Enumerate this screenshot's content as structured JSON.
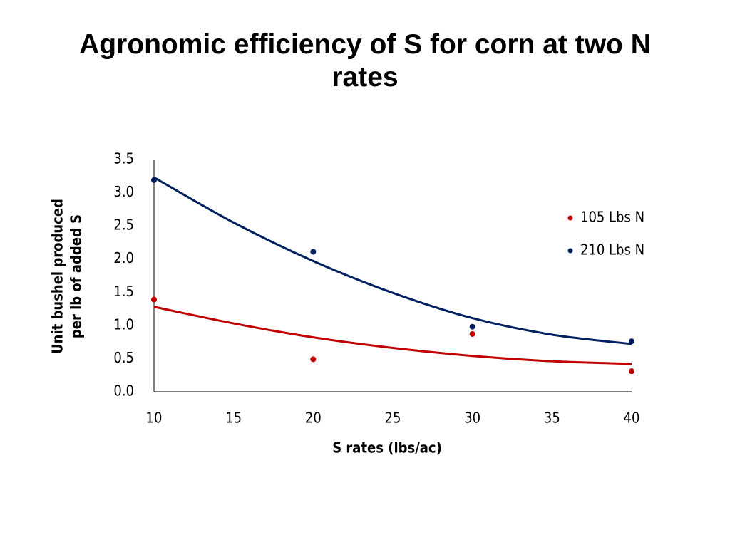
{
  "chart_data": {
    "type": "scatter",
    "title": "Agronomic efficiency of S for corn at two N rates",
    "xlabel": "S rates (lbs/ac)",
    "ylabel": [
      "Unit bushel produced",
      "per lb of added S"
    ],
    "x": [
      10,
      20,
      30,
      40
    ],
    "series": [
      {
        "name": "105 Lbs N",
        "color": "#c00000",
        "values": [
          1.39,
          0.49,
          0.87,
          0.31
        ],
        "trend": {
          "x": [
            10,
            15,
            20,
            25,
            30,
            35,
            40
          ],
          "values": [
            1.28,
            1.03,
            0.82,
            0.66,
            0.54,
            0.46,
            0.42
          ]
        }
      },
      {
        "name": "210 Lbs N",
        "color": "#002060",
        "values": [
          3.19,
          2.11,
          0.98,
          0.76
        ],
        "trend": {
          "x": [
            10,
            15,
            20,
            25,
            30,
            35,
            40
          ],
          "values": [
            3.23,
            2.55,
            1.97,
            1.49,
            1.11,
            0.86,
            0.72
          ]
        }
      }
    ],
    "xlim": [
      10,
      40
    ],
    "xticks": [
      10,
      15,
      20,
      25,
      30,
      35,
      40
    ],
    "ylim": [
      0,
      3.5
    ],
    "yticks": [
      {
        "value": 0,
        "label": "0.0"
      },
      0.5,
      {
        "value": 1,
        "label": "1.0"
      },
      1.5,
      {
        "value": 2,
        "label": "2.0"
      },
      2.5,
      {
        "value": 3,
        "label": "3.0"
      },
      3.5
    ],
    "grid": false,
    "legend": "right"
  }
}
